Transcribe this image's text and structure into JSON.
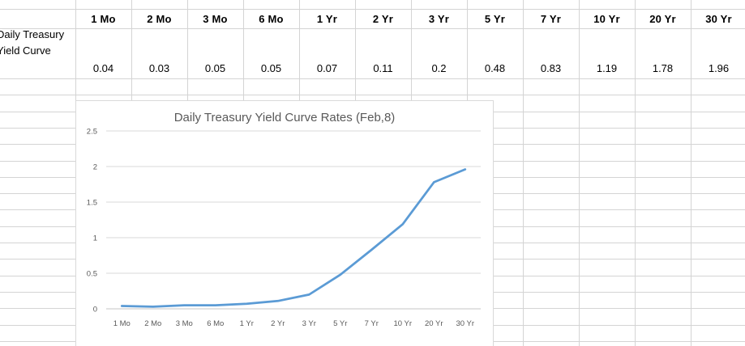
{
  "table": {
    "row_label": "Daily Treasury Yield Curve",
    "columns": [
      "1 Mo",
      "2 Mo",
      "3 Mo",
      "6 Mo",
      "1 Yr",
      "2 Yr",
      "3 Yr",
      "5 Yr",
      "7 Yr",
      "10 Yr",
      "20 Yr",
      "30 Yr"
    ],
    "values": [
      "0.04",
      "0.03",
      "0.05",
      "0.05",
      "0.07",
      "0.11",
      "0.2",
      "0.48",
      "0.83",
      "1.19",
      "1.78",
      "1.96"
    ]
  },
  "chart_data": {
    "type": "line",
    "title": "Daily Treasury Yield Curve Rates (Feb,8)",
    "categories": [
      "1 Mo",
      "2 Mo",
      "3 Mo",
      "6 Mo",
      "1 Yr",
      "2 Yr",
      "3 Yr",
      "5 Yr",
      "7 Yr",
      "10 Yr",
      "20 Yr",
      "30 Yr"
    ],
    "values": [
      0.04,
      0.03,
      0.05,
      0.05,
      0.07,
      0.11,
      0.2,
      0.48,
      0.83,
      1.19,
      1.78,
      1.96
    ],
    "title_color": "#595959",
    "xlabel": "",
    "ylabel": "",
    "ylim": [
      0,
      2.5
    ],
    "ytick_labels": [
      "0",
      "0.5",
      "1",
      "1.5",
      "2",
      "2.5"
    ],
    "grid": true,
    "legend": "none",
    "line_color": "#5b9bd5",
    "axis_text_color": "#595959",
    "plot_gridline_color": "#d9d9d9",
    "axis_line_color": "#c6c6c6"
  },
  "colors": {
    "sheet_gridline": "#d4d4d4",
    "table_text": "#000000"
  }
}
